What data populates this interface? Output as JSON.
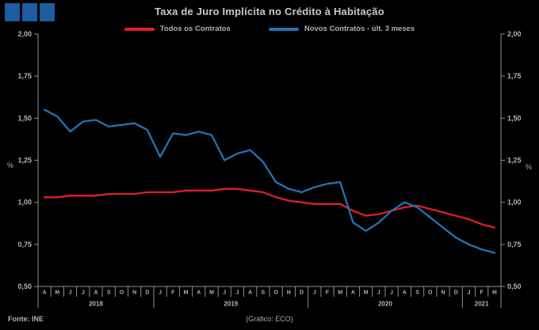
{
  "header": {
    "title": "Taxa de Juro Implícita no Crédito à Habitação"
  },
  "legend": [
    {
      "label": "Todos os Contratos",
      "color": "#e01f26"
    },
    {
      "label": "Novos Contratos - últ. 3 meses",
      "color": "#2173b8"
    }
  ],
  "footer": {
    "source": "Fonte: INE",
    "credit": "(Gráfico: ECO)"
  },
  "chart_data": {
    "type": "line",
    "title": "Taxa de Juro Implícita no Crédito à Habitação",
    "ylabel_left": "%",
    "ylabel_right": "%",
    "ylim": [
      0.5,
      2.0
    ],
    "ytick_step": 0.25,
    "ytick_labels": [
      "2,00",
      "1,75",
      "1,50",
      "1,25",
      "1,00",
      "0,75",
      "0,50"
    ],
    "grid": false,
    "legend_position": "top-center",
    "x_months": [
      "A",
      "M",
      "J",
      "J",
      "A",
      "S",
      "O",
      "N",
      "D",
      "J",
      "F",
      "M",
      "A",
      "M",
      "J",
      "J",
      "A",
      "S",
      "O",
      "N",
      "D",
      "J",
      "F",
      "M",
      "A",
      "M",
      "J",
      "J",
      "A",
      "S",
      "O",
      "N",
      "D",
      "J",
      "F",
      "M"
    ],
    "x_years": [
      {
        "label": "2018",
        "span": 9
      },
      {
        "label": "2019",
        "span": 12
      },
      {
        "label": "2020",
        "span": 12
      },
      {
        "label": "2021",
        "span": 3
      }
    ],
    "series": [
      {
        "name": "Todos os Contratos",
        "color": "#e01f26",
        "values": [
          1.03,
          1.03,
          1.04,
          1.04,
          1.04,
          1.05,
          1.05,
          1.05,
          1.06,
          1.06,
          1.06,
          1.07,
          1.07,
          1.07,
          1.08,
          1.08,
          1.07,
          1.06,
          1.03,
          1.01,
          1.0,
          0.99,
          0.99,
          0.99,
          0.95,
          0.92,
          0.93,
          0.95,
          0.97,
          0.98,
          0.96,
          0.94,
          0.92,
          0.9,
          0.87,
          0.85
        ]
      },
      {
        "name": "Novos Contratos - últ. 3 meses",
        "color": "#2173b8",
        "values": [
          1.55,
          1.51,
          1.42,
          1.48,
          1.49,
          1.45,
          1.46,
          1.47,
          1.43,
          1.27,
          1.41,
          1.4,
          1.42,
          1.4,
          1.25,
          1.29,
          1.31,
          1.24,
          1.12,
          1.08,
          1.06,
          1.09,
          1.11,
          1.12,
          0.88,
          0.83,
          0.88,
          0.95,
          1.0,
          0.97,
          0.91,
          0.85,
          0.79,
          0.75,
          0.72,
          0.7
        ]
      }
    ]
  }
}
